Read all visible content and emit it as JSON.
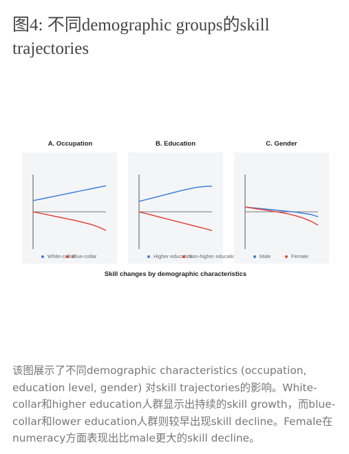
{
  "title": "图4: 不同demographic groups的skill trajectories",
  "figure": {
    "caption": "Skill changes by demographic characteristics",
    "colors": {
      "blue": "#3b7ddd",
      "red": "#e0443a",
      "panel_bg": "#f4f5f7",
      "axis": "#555555",
      "zero_line": "#777777"
    }
  },
  "chart_data": [
    {
      "type": "line",
      "title": "A. Occupation",
      "x": [
        0,
        1,
        2,
        3,
        4,
        5,
        6,
        7,
        8,
        9,
        10
      ],
      "series": [
        {
          "name": "White-collar",
          "color": "#3b7ddd",
          "values": [
            0.3,
            0.34,
            0.38,
            0.42,
            0.46,
            0.5,
            0.54,
            0.58,
            0.62,
            0.66,
            0.7
          ]
        },
        {
          "name": "Blue-collar",
          "color": "#e0443a",
          "values": [
            0.0,
            -0.04,
            -0.08,
            -0.12,
            -0.16,
            -0.2,
            -0.24,
            -0.29,
            -0.34,
            -0.41,
            -0.5
          ]
        }
      ],
      "ylim": [
        -1,
        1
      ],
      "legend": "bottom"
    },
    {
      "type": "line",
      "title": "B. Education",
      "x": [
        0,
        1,
        2,
        3,
        4,
        5,
        6,
        7,
        8,
        9,
        10
      ],
      "series": [
        {
          "name": "Higher education",
          "color": "#3b7ddd",
          "values": [
            0.28,
            0.33,
            0.38,
            0.43,
            0.48,
            0.53,
            0.58,
            0.62,
            0.66,
            0.68,
            0.69
          ]
        },
        {
          "name": "Non-higher education",
          "color": "#e0443a",
          "values": [
            0.0,
            -0.05,
            -0.1,
            -0.15,
            -0.2,
            -0.25,
            -0.3,
            -0.35,
            -0.4,
            -0.45,
            -0.5
          ]
        }
      ],
      "ylim": [
        -1,
        1
      ],
      "legend": "bottom"
    },
    {
      "type": "line",
      "title": "C. Gender",
      "x": [
        0,
        1,
        2,
        3,
        4,
        5,
        6,
        7,
        8,
        9,
        10
      ],
      "series": [
        {
          "name": "Male",
          "color": "#3b7ddd",
          "values": [
            0.13,
            0.11,
            0.09,
            0.07,
            0.05,
            0.03,
            0.01,
            -0.01,
            -0.04,
            -0.07,
            -0.13
          ]
        },
        {
          "name": "Female",
          "color": "#e0443a",
          "values": [
            0.13,
            0.1,
            0.07,
            0.04,
            0.01,
            -0.02,
            -0.06,
            -0.11,
            -0.17,
            -0.25,
            -0.36
          ]
        }
      ],
      "ylim": [
        -1,
        1
      ],
      "legend": "bottom"
    }
  ],
  "description": "该图展示了不同demographic characteristics (occupation, education level, gender) 对skill trajectories的影响。White-collar和higher education人群显示出持续的skill growth，而blue-collar和lower education人群则较早出现skill decline。Female在numeracy方面表现出比male更大的skill decline。"
}
